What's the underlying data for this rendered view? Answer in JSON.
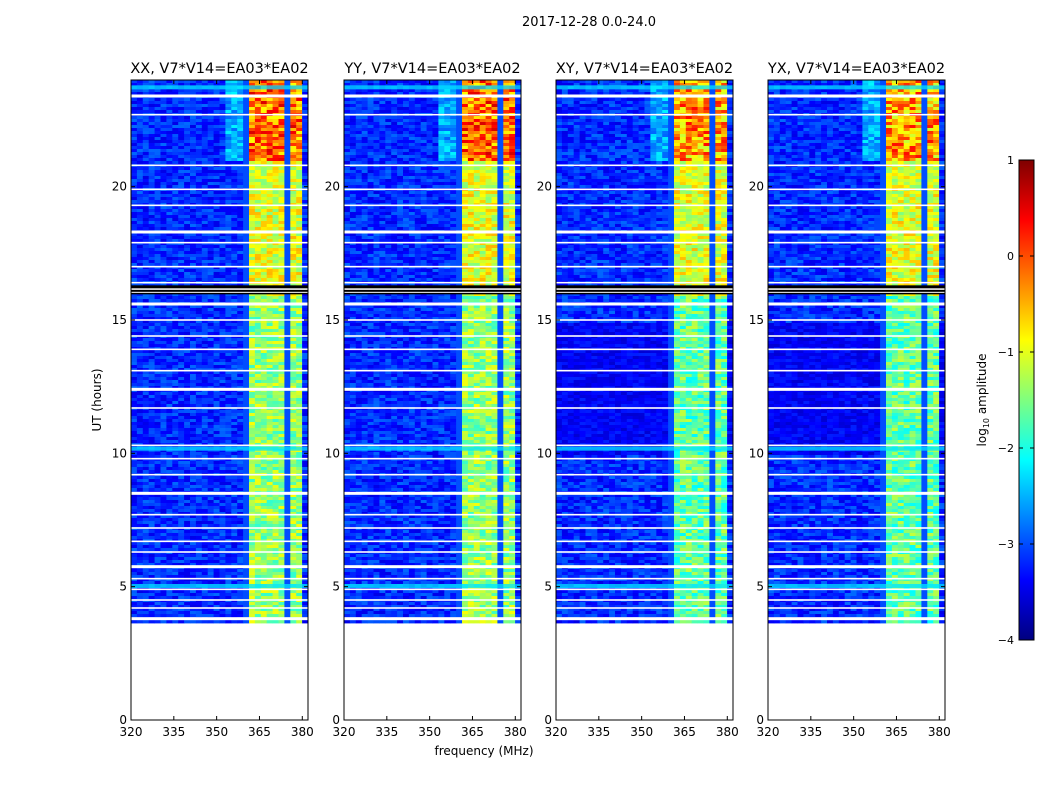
{
  "figure_title": "2017-12-28 0.0-24.0",
  "shared_xlabel": "frequency (MHz)",
  "shared_ylabel": "UT (hours)",
  "colorbar": {
    "label_main": "log",
    "label_sub": "10",
    "label_tail": " amplitude",
    "range": [
      -4,
      1
    ],
    "ticks": [
      1,
      0,
      -1,
      -2,
      -3,
      -4
    ],
    "tick_labels": [
      "1",
      "0",
      "−1",
      "−2",
      "−3",
      "−4"
    ],
    "colormap": "jet",
    "colors": [
      "#00007f",
      "#0000ff",
      "#007fff",
      "#00ffff",
      "#7fff7f",
      "#ffff00",
      "#ff7f00",
      "#ff0000",
      "#7f0000"
    ]
  },
  "chart_data": [
    {
      "type": "heatmap",
      "title": "XX, V7*V14=EA03*EA02",
      "xlabel": "frequency (MHz)",
      "ylabel": "UT (hours)",
      "xlim": [
        320,
        382
      ],
      "ylim": [
        0,
        24
      ],
      "xticks": [
        320,
        335,
        350,
        365,
        380
      ],
      "yticks": [
        0,
        5,
        10,
        15,
        20
      ],
      "data_start_hour": 3.7,
      "signal_band_mhz": [
        360,
        379
      ]
    },
    {
      "type": "heatmap",
      "title": "YY, V7*V14=EA03*EA02",
      "xlabel": "frequency (MHz)",
      "ylabel": "",
      "xlim": [
        320,
        382
      ],
      "ylim": [
        0,
        24
      ],
      "xticks": [
        320,
        335,
        350,
        365,
        380
      ],
      "yticks": [
        0,
        5,
        10,
        15,
        20
      ],
      "data_start_hour": 3.7,
      "signal_band_mhz": [
        360,
        379
      ]
    },
    {
      "type": "heatmap",
      "title": "XY, V7*V14=EA03*EA02",
      "xlabel": "frequency (MHz)",
      "ylabel": "",
      "xlim": [
        320,
        382
      ],
      "ylim": [
        0,
        24
      ],
      "xticks": [
        320,
        335,
        350,
        365,
        380
      ],
      "yticks": [
        0,
        5,
        10,
        15,
        20
      ],
      "data_start_hour": 3.7,
      "signal_band_mhz": [
        360,
        379
      ]
    },
    {
      "type": "heatmap",
      "title": "YX, V7*V14=EA03*EA02",
      "xlabel": "frequency (MHz)",
      "ylabel": "",
      "xlim": [
        320,
        382
      ],
      "ylim": [
        0,
        24
      ],
      "xticks": [
        320,
        335,
        350,
        365,
        380
      ],
      "yticks": [
        0,
        5,
        10,
        15,
        20
      ],
      "data_start_hour": 3.7,
      "signal_band_mhz": [
        360,
        379
      ]
    }
  ]
}
